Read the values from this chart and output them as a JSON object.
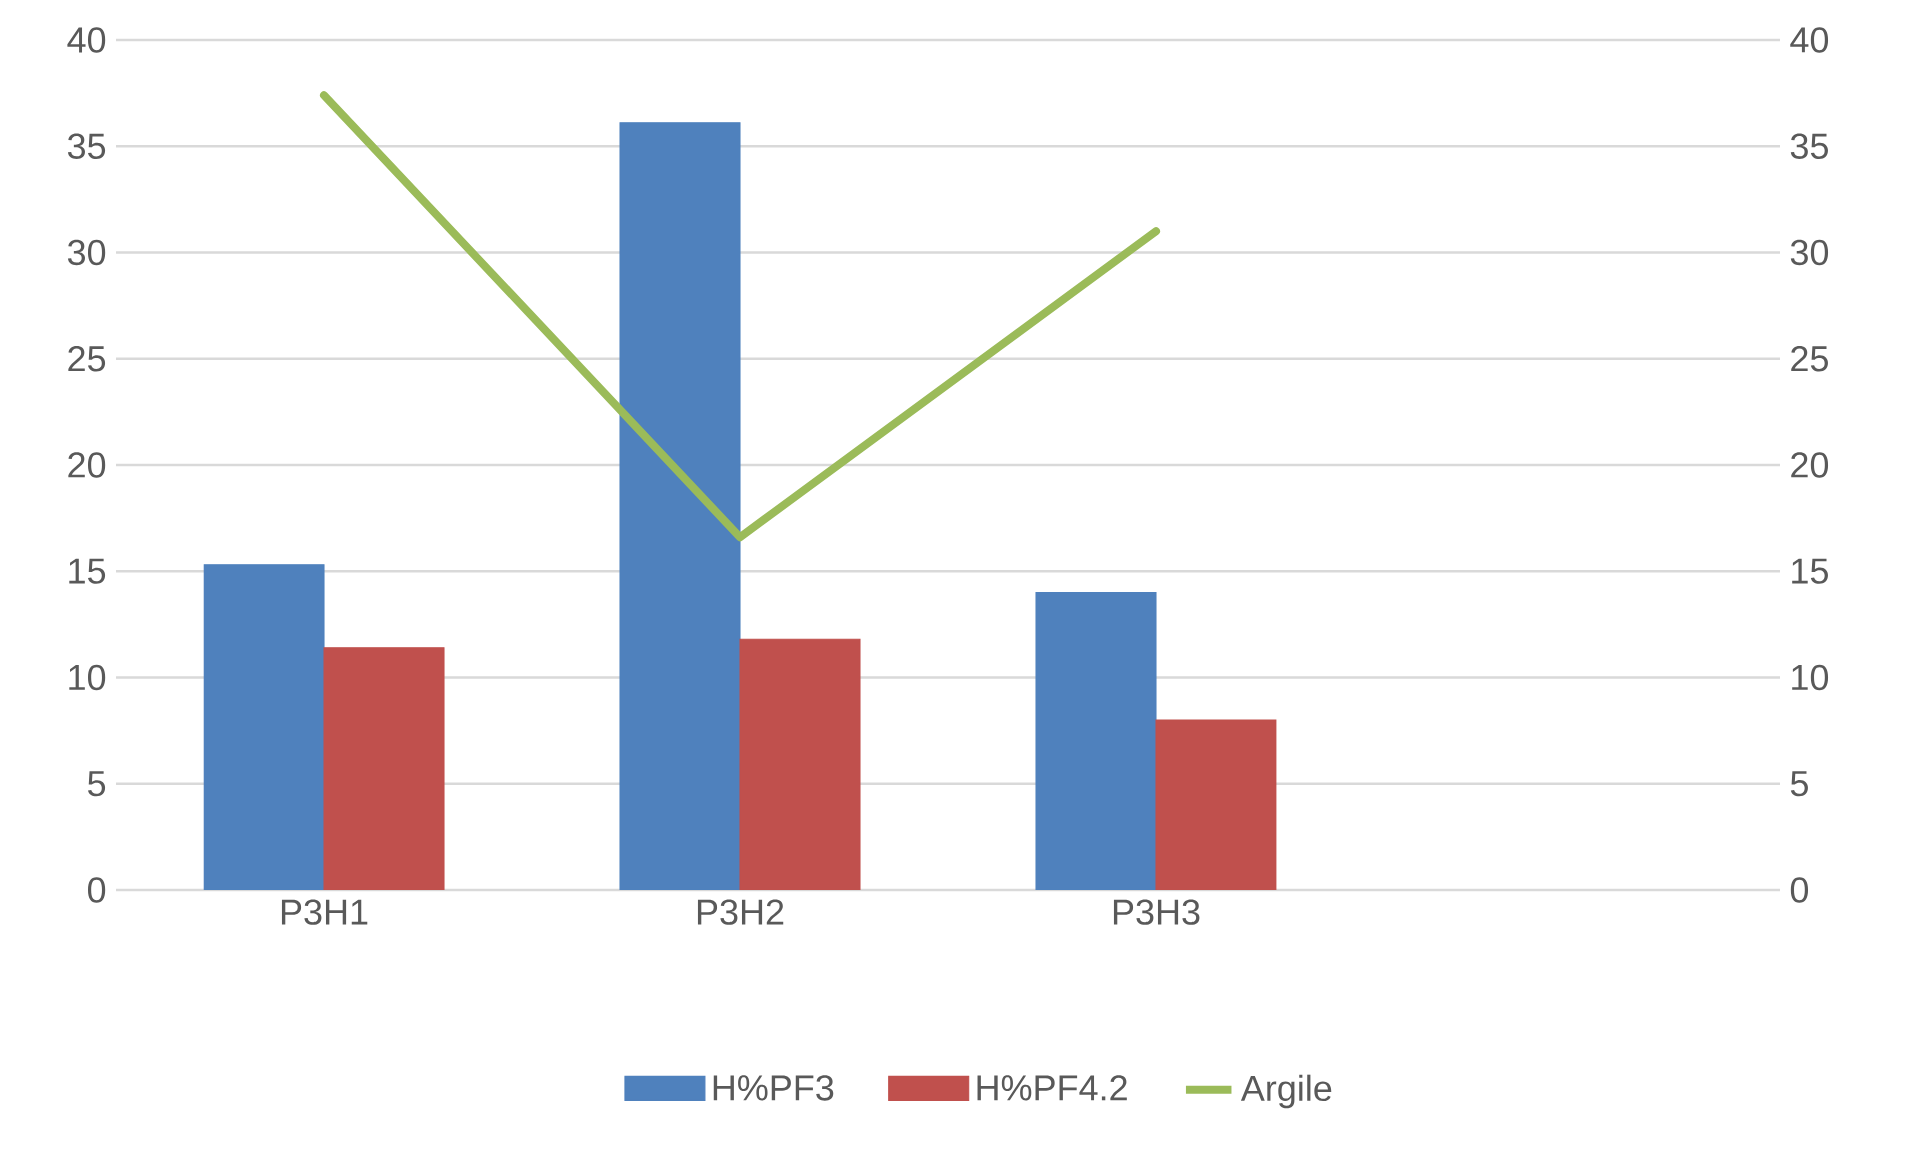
{
  "chart_data": {
    "type": "bar",
    "categories": [
      "P3H1",
      "P3H2",
      "P3H3",
      null
    ],
    "series": [
      {
        "name": "H%PF3",
        "color": "#4f81bd",
        "values": [
          15.3,
          36.1,
          14.0,
          null
        ]
      },
      {
        "name": "H%PF4.2",
        "color": "#c0504d",
        "values": [
          11.4,
          11.8,
          8.0,
          null
        ]
      },
      {
        "name": "Argile",
        "type": "line",
        "axis": "y2",
        "color": "#9bbb59",
        "values": [
          37.4,
          16.6,
          31.0,
          null
        ]
      }
    ],
    "ylim": [
      0,
      40
    ],
    "yticks": [
      0,
      5,
      10,
      15,
      20,
      25,
      30,
      35,
      40
    ],
    "y2lim": [
      0,
      40
    ],
    "y2ticks": [
      0,
      5,
      10,
      15,
      20,
      25,
      30,
      35,
      40
    ],
    "grid": "y",
    "legend": "bottom"
  }
}
